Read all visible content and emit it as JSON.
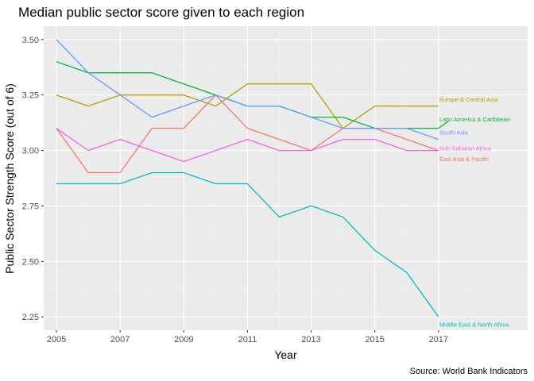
{
  "chart_data": {
    "type": "line",
    "title": "Median public sector score given to each region",
    "xlabel": "Year",
    "ylabel": "Public Sector Strength Score (out of 6)",
    "caption": "Source: World Bank Indicators",
    "xlim": [
      2004.6,
      2019.8
    ],
    "ylim": [
      2.19,
      3.56
    ],
    "x_ticks": [
      2005,
      2007,
      2009,
      2011,
      2013,
      2015,
      2017
    ],
    "y_ticks": [
      2.25,
      2.5,
      2.75,
      3.0,
      3.25,
      3.5
    ],
    "x_tick_labels": [
      "2005",
      "2007",
      "2009",
      "2011",
      "2013",
      "2015",
      "2017"
    ],
    "y_tick_labels": [
      "2.25",
      "2.50",
      "2.75",
      "3.00",
      "3.25",
      "3.50"
    ],
    "grid": true,
    "legend": "direct labels at line ends",
    "x": [
      2005,
      2006,
      2007,
      2008,
      2009,
      2010,
      2011,
      2012,
      2013,
      2014,
      2015,
      2016,
      2017
    ],
    "series": [
      {
        "name": "East Asia & Pacific",
        "color": "#F8766D",
        "label_y": 2.96,
        "values": [
          3.1,
          2.9,
          2.9,
          3.1,
          3.1,
          3.25,
          3.1,
          3.05,
          3.0,
          3.1,
          3.1,
          3.05,
          3.0
        ]
      },
      {
        "name": "Europe & Central Asia",
        "color": "#B79F00",
        "label_y": 3.23,
        "values": [
          3.25,
          3.2,
          3.25,
          3.25,
          3.25,
          3.2,
          3.3,
          3.3,
          3.3,
          3.1,
          3.2,
          3.2,
          3.2
        ]
      },
      {
        "name": "Latin America & Caribbean",
        "color": "#00BA38",
        "label_y": 3.14,
        "tail": [
          2017.3,
          3.13
        ],
        "values": [
          3.4,
          3.35,
          3.35,
          3.35,
          3.3,
          3.25,
          3.2,
          3.2,
          3.15,
          3.15,
          3.1,
          3.1,
          3.1
        ]
      },
      {
        "name": "Middle East & North Africa",
        "color": "#00BFC4",
        "label_y": 2.215,
        "values": [
          2.85,
          2.85,
          2.85,
          2.9,
          2.9,
          2.85,
          2.85,
          2.7,
          2.75,
          2.7,
          2.55,
          2.45,
          2.25
        ]
      },
      {
        "name": "South Asia",
        "color": "#619CFF",
        "label_y": 3.08,
        "values": [
          3.5,
          3.35,
          3.25,
          3.15,
          3.2,
          3.25,
          3.2,
          3.2,
          3.15,
          3.1,
          3.1,
          3.1,
          3.05
        ]
      },
      {
        "name": "Sub-Saharan Africa",
        "color": "#F564E3",
        "label_y": 3.01,
        "values": [
          3.1,
          3.0,
          3.05,
          3.0,
          2.95,
          3.0,
          3.05,
          3.0,
          3.0,
          3.05,
          3.05,
          3.0,
          3.0
        ]
      }
    ]
  },
  "colors": {
    "panel_background": "#EBEBEB",
    "grid_major": "#FFFFFF",
    "grid_minor": "#F2F2F2"
  }
}
